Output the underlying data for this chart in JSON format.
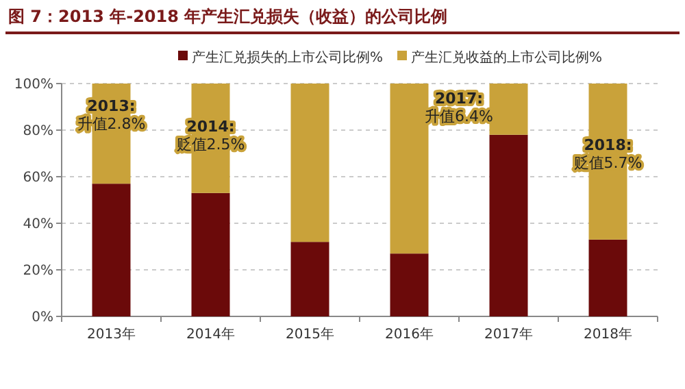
{
  "chart_data": {
    "type": "bar",
    "stacked": true,
    "title": "图 7：2013 年-2018 年产生汇兑损失（收益）的公司比例",
    "categories": [
      "2013年",
      "2014年",
      "2015年",
      "2016年",
      "2017年",
      "2018年"
    ],
    "series": [
      {
        "name": "产生汇兑损失的上市公司比例%",
        "color": "#6b0a0a",
        "values": [
          57,
          53,
          32,
          27,
          78,
          33
        ]
      },
      {
        "name": "产生汇兑收益的上市公司比例%",
        "color": "#c9a23a",
        "values": [
          43,
          47,
          68,
          73,
          22,
          67
        ]
      }
    ],
    "ylim": [
      0,
      100
    ],
    "yticks": [
      {
        "value": 0,
        "label": "0%"
      },
      {
        "value": 20,
        "label": "20%"
      },
      {
        "value": 40,
        "label": "40%"
      },
      {
        "value": 60,
        "label": "60%"
      },
      {
        "value": 80,
        "label": "80%"
      },
      {
        "value": 100,
        "label": "100%"
      }
    ],
    "grid": "y",
    "legend": "top",
    "annotations": [
      "2013:\n升值2.8%",
      "2014:\n贬值2.5%",
      "2017:\n升值6.4%",
      "2018:\n贬值5.7%"
    ]
  }
}
